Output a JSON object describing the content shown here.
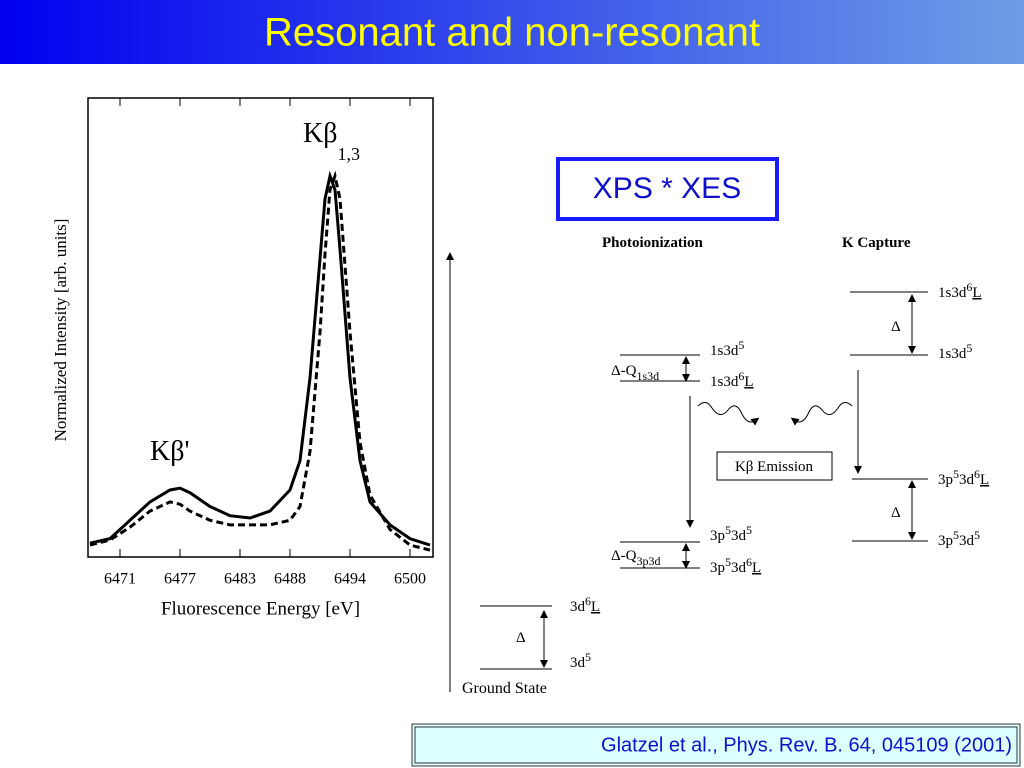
{
  "title": "Resonant and non-resonant",
  "chart_data": {
    "type": "line",
    "xlabel": "Fluorescence Energy [eV]",
    "ylabel": "Normalized Intensity [arb. units]",
    "annotations": [
      {
        "text": "Kβ",
        "sub": "1,3"
      },
      {
        "text": "Kβ'"
      }
    ],
    "x": [
      6468,
      6470,
      6472,
      6474,
      6476,
      6477,
      6478,
      6480,
      6482,
      6484,
      6486,
      6488,
      6489,
      6490,
      6491,
      6491.5,
      6492,
      6492.5,
      6493,
      6494,
      6495,
      6496,
      6498,
      6500,
      6502
    ],
    "series": [
      {
        "color": "#000000",
        "dash": "none",
        "values": [
          0.03,
          0.04,
          0.08,
          0.12,
          0.146,
          0.15,
          0.14,
          0.11,
          0.09,
          0.085,
          0.1,
          0.146,
          0.21,
          0.39,
          0.65,
          0.78,
          0.83,
          0.8,
          0.67,
          0.39,
          0.21,
          0.12,
          0.07,
          0.04,
          0.026
        ]
      },
      {
        "color": "#000000",
        "dash": "7,4",
        "values": [
          0.026,
          0.037,
          0.065,
          0.1,
          0.12,
          0.115,
          0.1,
          0.08,
          0.07,
          0.07,
          0.07,
          0.08,
          0.11,
          0.23,
          0.49,
          0.66,
          0.8,
          0.83,
          0.78,
          0.49,
          0.25,
          0.135,
          0.06,
          0.026,
          0.015
        ]
      }
    ],
    "xlim": [
      6467.8,
      6502.3
    ],
    "ylim": [
      0,
      1
    ],
    "xticks": [
      6471,
      6477,
      6483,
      6488,
      6494,
      6500
    ]
  },
  "diagram": {
    "badge": "XPS * XES",
    "headings": [
      "Photoionization",
      "K Capture"
    ],
    "emission": "Kβ Emission",
    "ground_state": "Ground State",
    "labels": [
      {
        "parts": [
          {
            "t": "3d"
          },
          {
            "sup": "6"
          },
          {
            "ul": "L"
          }
        ]
      },
      {
        "parts": [
          {
            "t": "3d"
          },
          {
            "sup": "5"
          }
        ]
      },
      {
        "parts": [
          {
            "t": "Δ"
          }
        ]
      },
      {
        "parts": [
          {
            "t": "1s3d"
          },
          {
            "sup": "5"
          }
        ]
      },
      {
        "parts": [
          {
            "t": "1s3d"
          },
          {
            "sup": "6"
          },
          {
            "ul": "L"
          }
        ]
      },
      {
        "parts": [
          {
            "t": "Δ-Q"
          },
          {
            "sub": "1s3d"
          }
        ]
      },
      {
        "parts": [
          {
            "t": "3p"
          },
          {
            "sup": "5"
          },
          {
            "t": "3d"
          },
          {
            "sup": "5"
          }
        ]
      },
      {
        "parts": [
          {
            "t": "3p"
          },
          {
            "sup": "5"
          },
          {
            "t": "3d"
          },
          {
            "sup": "6"
          },
          {
            "ul": "L"
          }
        ]
      },
      {
        "parts": [
          {
            "t": "Δ-Q"
          },
          {
            "sub": "3p3d"
          }
        ]
      },
      {
        "parts": [
          {
            "t": "1s3d"
          },
          {
            "sup": "6"
          },
          {
            "ul": "L"
          }
        ]
      },
      {
        "parts": [
          {
            "t": "1s3d"
          },
          {
            "sup": "5"
          }
        ]
      },
      {
        "parts": [
          {
            "t": "Δ"
          }
        ]
      },
      {
        "parts": [
          {
            "t": "3p"
          },
          {
            "sup": "5"
          },
          {
            "t": "3d"
          },
          {
            "sup": "6"
          },
          {
            "ul": "L"
          }
        ]
      },
      {
        "parts": [
          {
            "t": "3p"
          },
          {
            "sup": "5"
          },
          {
            "t": "3d"
          },
          {
            "sup": "5"
          }
        ]
      },
      {
        "parts": [
          {
            "t": "Δ"
          }
        ]
      }
    ]
  },
  "citation": "Glatzel et al., Phys. Rev. B. 64, 045109 (2001)"
}
